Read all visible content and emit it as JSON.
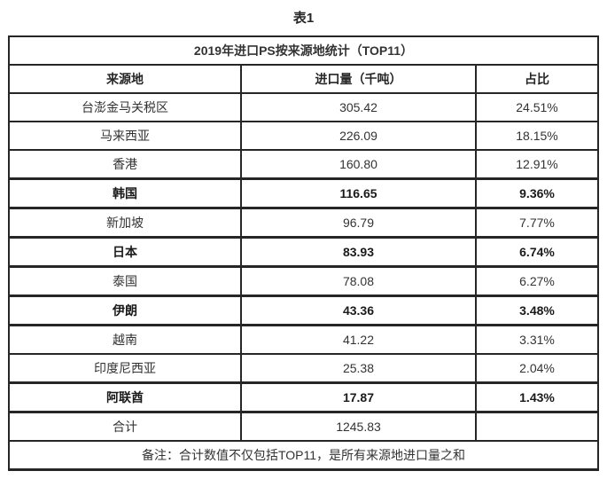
{
  "page_title": "表1",
  "colors": {
    "border": "#262626",
    "text": "#333333",
    "background": "#ffffff"
  },
  "chart_data": {
    "type": "table",
    "title": "2019年进口PS按来源地统计（TOP11）",
    "columns": [
      "来源地",
      "进口量（千吨）",
      "占比"
    ],
    "rows": [
      {
        "origin": "台澎金马关税区",
        "volume": "305.42",
        "share": "24.51%",
        "bold": false
      },
      {
        "origin": "马来西亚",
        "volume": "226.09",
        "share": "18.15%",
        "bold": false
      },
      {
        "origin": "香港",
        "volume": "160.80",
        "share": "12.91%",
        "bold": false
      },
      {
        "origin": "韩国",
        "volume": "116.65",
        "share": "9.36%",
        "bold": true
      },
      {
        "origin": "新加坡",
        "volume": "96.79",
        "share": "7.77%",
        "bold": false
      },
      {
        "origin": "日本",
        "volume": "83.93",
        "share": "6.74%",
        "bold": true
      },
      {
        "origin": "泰国",
        "volume": "78.08",
        "share": "6.27%",
        "bold": false
      },
      {
        "origin": "伊朗",
        "volume": "43.36",
        "share": "3.48%",
        "bold": true
      },
      {
        "origin": "越南",
        "volume": "41.22",
        "share": "3.31%",
        "bold": false
      },
      {
        "origin": "印度尼西亚",
        "volume": "25.38",
        "share": "2.04%",
        "bold": false
      },
      {
        "origin": "阿联酋",
        "volume": "17.87",
        "share": "1.43%",
        "bold": true
      }
    ],
    "total": {
      "label": "合计",
      "volume": "1245.83",
      "share": ""
    },
    "note": "备注：合计数值不仅包括TOP11，是所有来源地进口量之和"
  }
}
